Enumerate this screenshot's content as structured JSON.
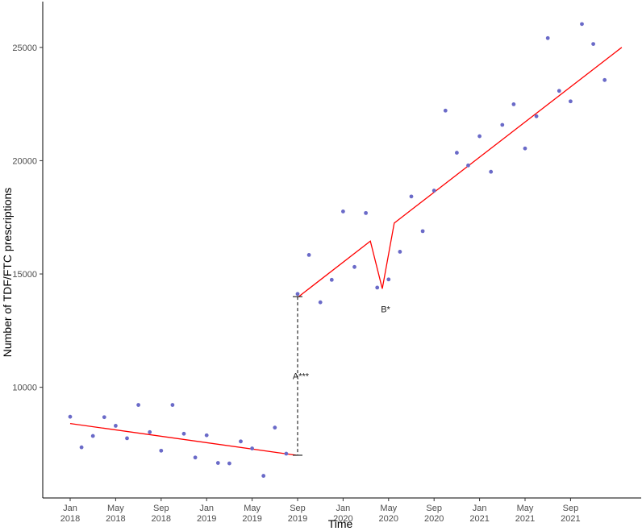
{
  "chart_data": {
    "type": "scatter",
    "xlabel": "Time",
    "ylabel": "Number of TDF/FTC prescriptions",
    "x_start": "Jan 2018",
    "ylim": [
      5000,
      27000
    ],
    "yticks": [
      10000,
      15000,
      20000,
      25000
    ],
    "x_ticks": [
      {
        "month": 0,
        "line1": "Jan",
        "line2": "2018"
      },
      {
        "month": 4,
        "line1": "May",
        "line2": "2018"
      },
      {
        "month": 8,
        "line1": "Sep",
        "line2": "2018"
      },
      {
        "month": 12,
        "line1": "Jan",
        "line2": "2019"
      },
      {
        "month": 16,
        "line1": "May",
        "line2": "2019"
      },
      {
        "month": 20,
        "line1": "Sep",
        "line2": "2019"
      },
      {
        "month": 24,
        "line1": "Jan",
        "line2": "2020"
      },
      {
        "month": 28,
        "line1": "May",
        "line2": "2020"
      },
      {
        "month": 32,
        "line1": "Sep",
        "line2": "2020"
      },
      {
        "month": 36,
        "line1": "Jan",
        "line2": "2021"
      },
      {
        "month": 40,
        "line1": "May",
        "line2": "2021"
      },
      {
        "month": 44,
        "line1": "Sep",
        "line2": "2021"
      }
    ],
    "xlim": [
      -1,
      49.5
    ],
    "series": [
      {
        "kind": "points",
        "color": "#6a6ac8",
        "x": [
          0,
          1,
          2,
          3,
          4,
          5,
          6,
          7,
          8,
          9,
          10,
          11,
          12,
          13,
          14,
          15,
          16,
          17,
          18,
          19,
          20,
          21,
          22,
          23,
          24,
          25,
          26,
          27,
          28,
          29,
          30,
          31,
          32,
          33,
          34,
          35,
          36,
          37,
          38,
          39,
          40,
          41,
          42,
          43,
          44,
          45,
          46,
          47,
          48
        ],
        "y": [
          8700,
          7350,
          7850,
          8680,
          8300,
          7750,
          9220,
          8020,
          7200,
          9220,
          7950,
          6900,
          7880,
          6660,
          6640,
          7610,
          7300,
          6090,
          8220,
          7070,
          14120,
          15840,
          13750,
          14740,
          17760,
          15310,
          17690,
          14400,
          14760,
          15980,
          18420,
          16890,
          18680,
          22210,
          20350,
          19790,
          21080,
          19510,
          21580,
          22490,
          20540,
          21960,
          25410,
          23080,
          22620,
          26030,
          25150,
          23560,
          null
        ]
      },
      {
        "kind": "fitted",
        "color": "#ff0000",
        "x": [
          0,
          19.9,
          20.1,
          26.4,
          27.45,
          28.5,
          48.5
        ],
        "y": [
          8400,
          7000,
          14000,
          16450,
          14350,
          17250,
          25000
        ]
      }
    ],
    "annotations": [
      {
        "label": "A***",
        "x": 20,
        "y": 10500,
        "bracket_y": [
          7000,
          14000
        ]
      },
      {
        "label": "B*",
        "x": 27.45,
        "y": 13450
      }
    ],
    "grid": false
  }
}
